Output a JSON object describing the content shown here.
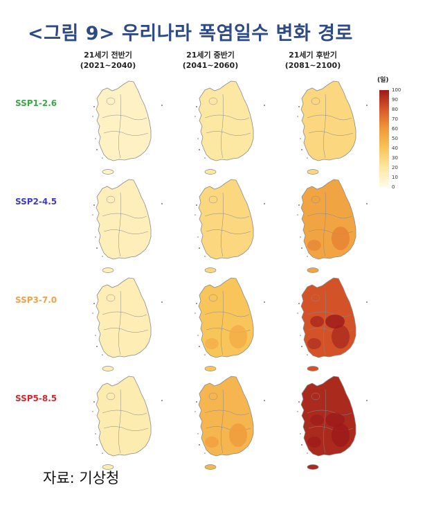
{
  "title": "<그림 9> 우리나라 폭염일수 변화 경로",
  "columns": [
    {
      "label": "21세기 전반기",
      "period": "(2021~2040)"
    },
    {
      "label": "21세기 중반기",
      "period": "(2041~2060)"
    },
    {
      "label": "21세기 후반기",
      "period": "(2081~2100)"
    }
  ],
  "rows": [
    {
      "label": "SSP1-2.6",
      "color": "#3aa845"
    },
    {
      "label": "SSP2-4.5",
      "color": "#3c3cc8"
    },
    {
      "label": "SSP3-7.0",
      "color": "#f0a24a"
    },
    {
      "label": "SSP5-8.5",
      "color": "#d4272d"
    }
  ],
  "legend": {
    "title": "(일)",
    "ticks": [
      "100",
      "90",
      "80",
      "70",
      "60",
      "50",
      "40",
      "30",
      "20",
      "10",
      "0"
    ]
  },
  "source": "자료: 기상청"
}
